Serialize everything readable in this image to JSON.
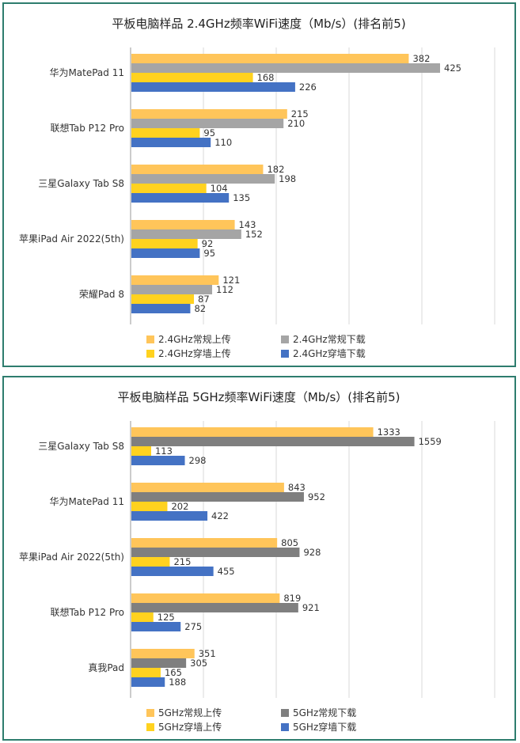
{
  "chart_data": [
    {
      "type": "bar",
      "orientation": "horizontal",
      "title": "平板电脑样品 2.4GHz频率WiFi速度（Mb/s）(排名前5)",
      "categories": [
        "华为MatePad 11",
        "联想Tab P12 Pro",
        "三星Galaxy Tab S8",
        "苹果iPad Air 2022(5th)",
        "荣耀Pad 8"
      ],
      "series": [
        {
          "name": "2.4GHz常规上传",
          "color": "#FFC55A",
          "values": [
            382,
            215,
            182,
            143,
            121
          ]
        },
        {
          "name": "2.4GHz常规下载",
          "color": "#A5A5A5",
          "values": [
            425,
            210,
            198,
            152,
            112
          ]
        },
        {
          "name": "2.4GHz穿墙上传",
          "color": "#FFD21F",
          "values": [
            168,
            95,
            104,
            92,
            87
          ]
        },
        {
          "name": "2.4GHz穿墙下载",
          "color": "#4472C4",
          "values": [
            226,
            110,
            135,
            95,
            82
          ]
        }
      ],
      "xlim": [
        0,
        500
      ],
      "grid": true,
      "legend": "bottom"
    },
    {
      "type": "bar",
      "orientation": "horizontal",
      "title": "平板电脑样品 5GHz频率WiFi速度（Mb/s）(排名前5)",
      "categories": [
        "三星Galaxy Tab S8",
        "华为MatePad 11",
        "苹果iPad Air 2022(5th)",
        "联想Tab P12 Pro",
        "真我Pad"
      ],
      "series": [
        {
          "name": "5GHz常规上传",
          "color": "#FFC55A",
          "values": [
            1333,
            843,
            805,
            819,
            351
          ]
        },
        {
          "name": "5GHz常规下载",
          "color": "#7F7F7F",
          "values": [
            1559,
            952,
            928,
            921,
            305
          ]
        },
        {
          "name": "5GHz穿墙上传",
          "color": "#FFD21F",
          "values": [
            113,
            202,
            215,
            125,
            165
          ]
        },
        {
          "name": "5GHz穿墙下载",
          "color": "#4472C4",
          "values": [
            298,
            422,
            455,
            275,
            188
          ]
        }
      ],
      "xlim": [
        0,
        2000
      ],
      "grid": true,
      "legend": "bottom"
    }
  ]
}
